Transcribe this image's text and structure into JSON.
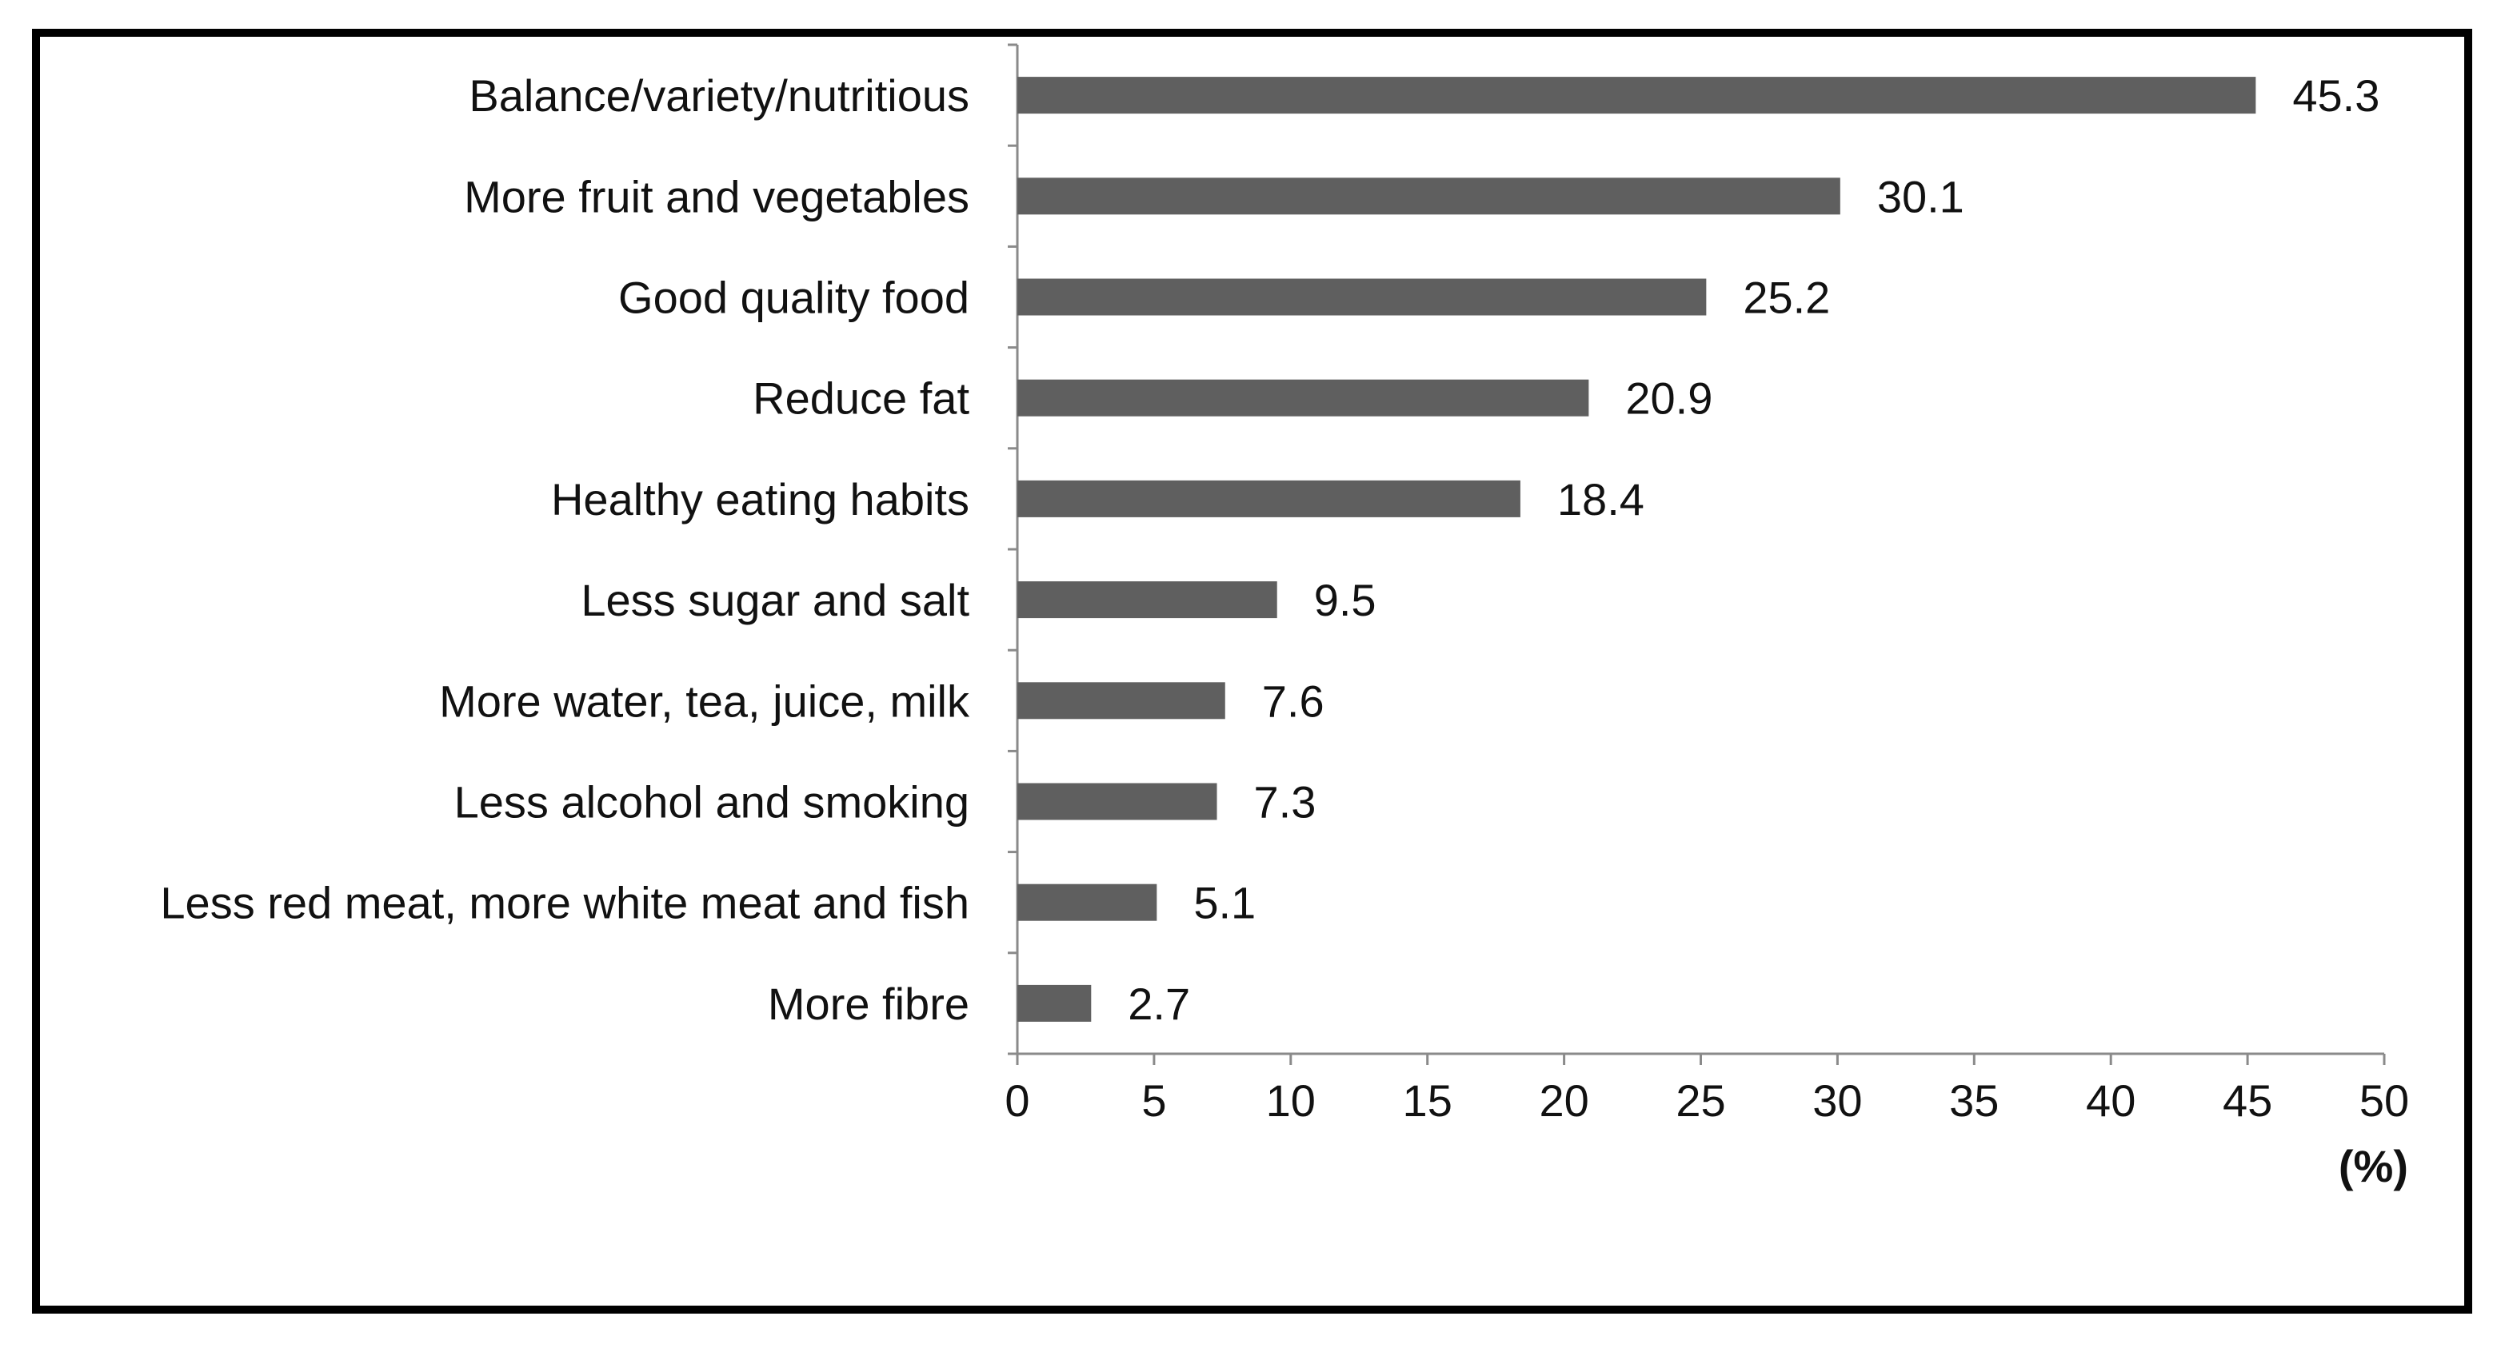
{
  "chart_data": {
    "type": "bar",
    "orientation": "horizontal",
    "title": "",
    "xlabel": "(%)",
    "ylabel": "",
    "xlim": [
      0,
      50
    ],
    "xticks": [
      0,
      5,
      10,
      15,
      20,
      25,
      30,
      35,
      40,
      45,
      50
    ],
    "categories": [
      "Balance/variety/nutritious",
      "More fruit and vegetables",
      "Good quality food",
      "Reduce fat",
      "Healthy eating habits",
      "Less sugar and salt",
      "More water, tea, juice, milk",
      "Less alcohol and smoking",
      "Less red meat, more white meat and fish",
      "More fibre"
    ],
    "values": [
      45.3,
      30.1,
      25.2,
      20.9,
      18.4,
      9.5,
      7.6,
      7.3,
      5.1,
      2.7
    ],
    "value_labels": [
      "45.3",
      "30.1",
      "25.2",
      "20.9",
      "18.4",
      "9.5",
      "7.6",
      "7.3",
      "5.1",
      "2.7"
    ],
    "bar_color": "#5f5f5f",
    "axis_color": "#8a8a8a",
    "grid": false
  }
}
